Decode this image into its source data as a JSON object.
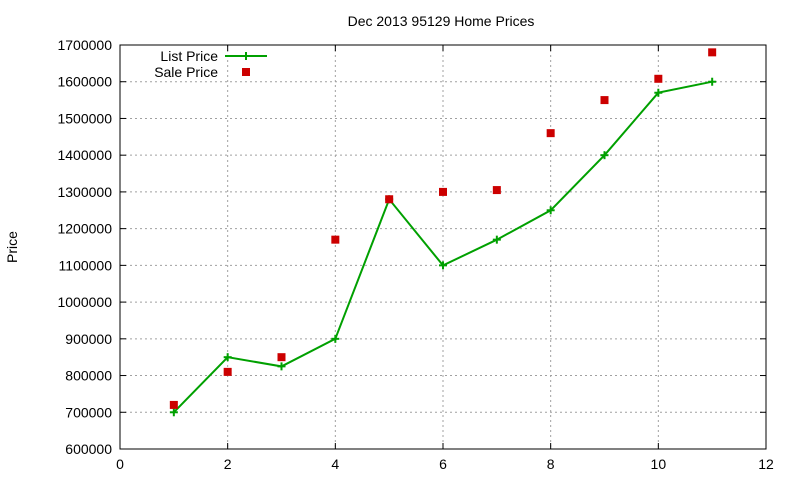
{
  "chart_data": {
    "type": "line",
    "title": "Dec 2013 95129 Home Prices",
    "xlabel": "",
    "ylabel": "Price",
    "xlim": [
      0,
      12
    ],
    "ylim": [
      600000,
      1700000
    ],
    "x_ticks": [
      "0",
      "2",
      "4",
      "6",
      "8",
      "10",
      "12"
    ],
    "y_ticks": [
      "600000",
      "700000",
      "800000",
      "900000",
      "1000000",
      "1100000",
      "1200000",
      "1300000",
      "1400000",
      "1500000",
      "1600000",
      "1700000"
    ],
    "grid": true,
    "legend_position": "top-left",
    "series": [
      {
        "name": "List Price",
        "style": "line with plus markers",
        "color": "#00a000",
        "x": [
          1,
          2,
          3,
          4,
          5,
          6,
          7,
          8,
          9,
          10,
          11
        ],
        "y": [
          700000,
          850000,
          825000,
          900000,
          1280000,
          1100000,
          1170000,
          1250000,
          1400000,
          1570000,
          1600000
        ]
      },
      {
        "name": "Sale Price",
        "style": "square markers",
        "color": "#cc0000",
        "x": [
          1,
          2,
          3,
          4,
          5,
          6,
          7,
          8,
          9,
          10,
          11
        ],
        "y": [
          720000,
          810000,
          850000,
          1170000,
          1280000,
          1300000,
          1305000,
          1460000,
          1550000,
          1608000,
          1680000
        ]
      }
    ]
  }
}
